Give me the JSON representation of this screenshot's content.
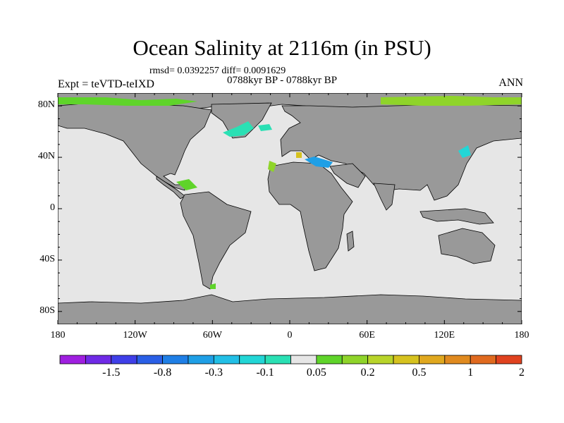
{
  "figure": {
    "title": "Ocean Salinity at 2116m (in PSU)",
    "stats_line": "rmsd= 0.0392257 diff= 0.0091629",
    "period": "0788kyr BP - 0788kyr BP",
    "left_label": "Expt = teVTD-teIXD",
    "right_label": "ANN"
  },
  "map": {
    "projection": "cylindrical equidistant",
    "lon_range": [
      -180,
      180
    ],
    "lat_range": [
      -90,
      90
    ],
    "lat_ticks": [
      {
        "value": 80,
        "label": "80N"
      },
      {
        "value": 40,
        "label": "40N"
      },
      {
        "value": 0,
        "label": "0"
      },
      {
        "value": -40,
        "label": "40S"
      },
      {
        "value": -80,
        "label": "80S"
      }
    ],
    "lon_ticks": [
      {
        "value": -180,
        "label": "180"
      },
      {
        "value": -120,
        "label": "120W"
      },
      {
        "value": -60,
        "label": "60W"
      },
      {
        "value": 0,
        "label": "0"
      },
      {
        "value": 60,
        "label": "60E"
      },
      {
        "value": 120,
        "label": "120E"
      },
      {
        "value": 180,
        "label": "180"
      }
    ],
    "colors": {
      "land": "#999999",
      "ocean_neutral": "#e6e6e6",
      "coast": "#000000",
      "frame": "#000000"
    }
  },
  "colorbar": {
    "colors": [
      "#9f1fe0",
      "#6f2ae6",
      "#3f3fe8",
      "#2a5fe6",
      "#1f7fe6",
      "#1f9fe6",
      "#22bfe6",
      "#22d6d6",
      "#2ae0b4",
      "#e6e6e6",
      "#5fd42a",
      "#8fd42a",
      "#b8d42a",
      "#d6c21f",
      "#e0a81f",
      "#e08a1f",
      "#e06a1f",
      "#e0421f"
    ],
    "tick_labels": [
      "-1.5",
      "-0.8",
      "-0.3",
      "-0.1",
      "0.05",
      "0.2",
      "0.5",
      "1",
      "2"
    ]
  }
}
